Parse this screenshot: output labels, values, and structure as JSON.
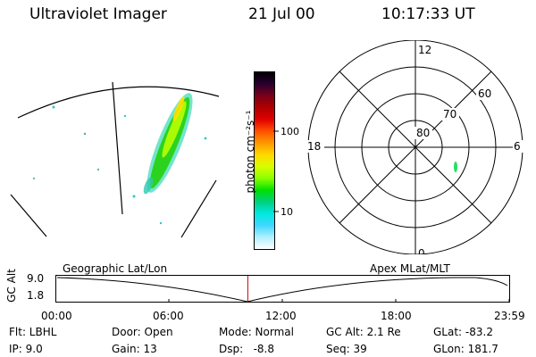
{
  "header": {
    "title": "Ultraviolet Imager",
    "date": "21 Jul 00",
    "time": "10:17:33 UT"
  },
  "colorbar": {
    "unit_label": "photon cm⁻²s⁻¹",
    "ticks": [
      {
        "value": 100,
        "label": "100"
      },
      {
        "value": 10,
        "label": "10"
      }
    ],
    "colors": [
      "#000000",
      "#2a0030",
      "#7a0018",
      "#b00000",
      "#e00000",
      "#ff5000",
      "#ff9800",
      "#ffd800",
      "#d8ff00",
      "#8cff00",
      "#00e000",
      "#00d080",
      "#00e8e0",
      "#40d8ff",
      "#b0f0ff",
      "#ffffff"
    ]
  },
  "polar": {
    "labels": {
      "top": "12",
      "left": "18",
      "right": "6",
      "bottom": "0"
    },
    "latitudes": [
      "80",
      "70",
      "60"
    ]
  },
  "timeline": {
    "y_axis_label": "GC Alt",
    "y_ticks": [
      "9.0",
      "1.8"
    ],
    "left_caption": "Geographic Lat/Lon",
    "right_caption": "Apex MLat/MLT",
    "x_ticks": [
      "00:00",
      "06:00",
      "12:00",
      "18:00",
      "23:59"
    ],
    "current_time_fraction": 0.424
  },
  "info": {
    "filter": "Flt: LBHL",
    "ip": "IP: 9.0",
    "door": "Door: Open",
    "gain": "Gain: 13",
    "mode": "Mode: Normal",
    "dsp": "Dsp:   -8.8",
    "gc_alt": "GC Alt: 2.1 Re",
    "seq": "Seq: 39",
    "glat": "GLat: -83.2",
    "glon": "GLon: 181.7"
  }
}
